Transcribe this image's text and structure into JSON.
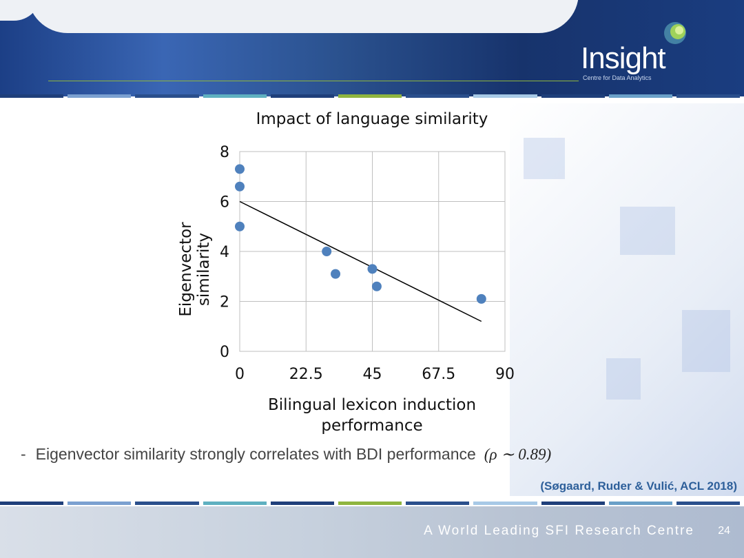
{
  "header": {
    "logo_name": "Insight",
    "logo_tagline": "Centre for Data Analytics"
  },
  "colors": {
    "header_blue": "#1c3f86",
    "accent_green": "#8fb53f",
    "point_blue": "#4f81bd",
    "citation": "#2d5f9a",
    "stripe": [
      "#1f3f7a",
      "#7ba0d0",
      "#2a4f8c",
      "#5fb0c0",
      "#1f3f7a",
      "#8fb53f",
      "#2a4f8c",
      "#a7c9e6",
      "#1f3f7a",
      "#6aa0c8",
      "#2a4f8c"
    ]
  },
  "chart_data": {
    "type": "scatter",
    "title": "Impact of language similarity",
    "xlabel": "Bilingual lexicon induction performance",
    "xlabel_lines": [
      "Bilingual lexicon induction",
      "performance"
    ],
    "ylabel": "Eigenvector similarity",
    "xlim": [
      0,
      90
    ],
    "ylim": [
      0,
      8
    ],
    "xticks": [
      "0",
      "22.5",
      "45",
      "67.5",
      "90"
    ],
    "yticks": [
      "0",
      "2",
      "4",
      "6",
      "8"
    ],
    "grid": true,
    "points": [
      {
        "x": 0,
        "y": 7.3
      },
      {
        "x": 0,
        "y": 6.6
      },
      {
        "x": 0,
        "y": 5.0
      },
      {
        "x": 29.5,
        "y": 4.0
      },
      {
        "x": 32.5,
        "y": 3.1
      },
      {
        "x": 45,
        "y": 3.3
      },
      {
        "x": 46.5,
        "y": 2.6
      },
      {
        "x": 82,
        "y": 2.1
      }
    ],
    "trendline": {
      "x1": 0,
      "y1": 6.0,
      "x2": 82,
      "y2": 1.2
    }
  },
  "bullet": {
    "dash": "-",
    "text": "Eigenvector similarity strongly correlates with BDI performance",
    "formula": "(ρ ∼ 0.89)"
  },
  "citation": "(Søgaard, Ruder & Vulić, ACL 2018)",
  "footer": {
    "tagline": "A World Leading SFI Research Centre",
    "page_number": "24"
  }
}
